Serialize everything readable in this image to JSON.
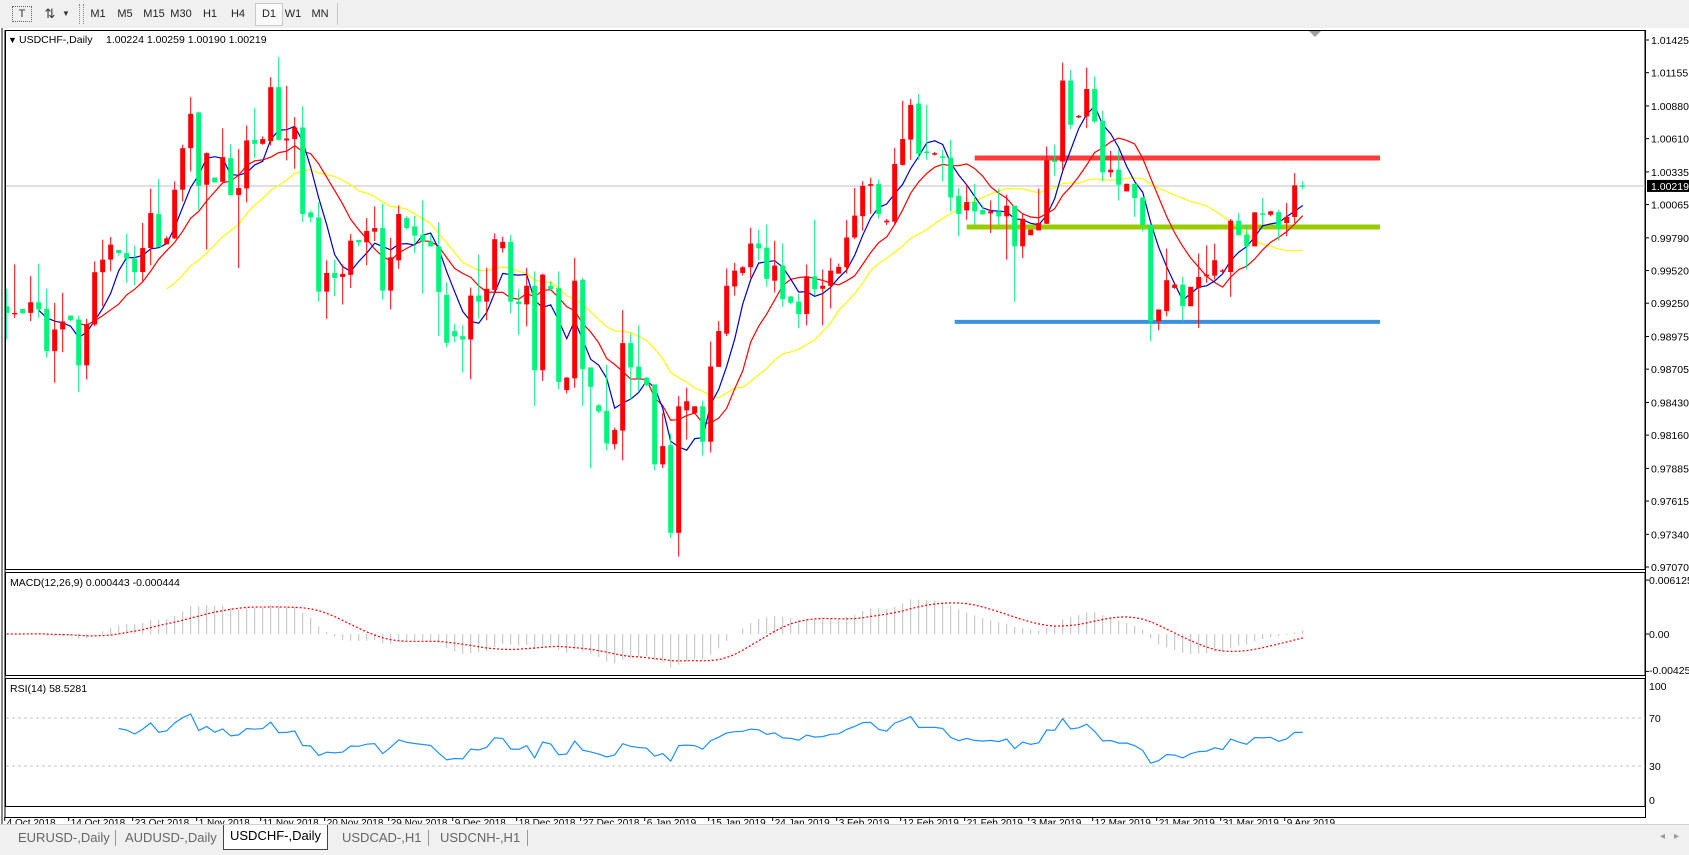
{
  "toolbar": {
    "text_tool_icon": "text-label-icon",
    "objects_icon": "arrows-objects-icon",
    "timeframes": [
      "M1",
      "M5",
      "M15",
      "M30",
      "H1",
      "H4",
      "D1",
      "W1",
      "MN"
    ],
    "active_timeframe": "D1"
  },
  "chart": {
    "symbol_title": "USDCHF-,Daily",
    "ohlc_readout": "1.00224 1.00259 1.00190 1.00219",
    "current_price": "1.00219",
    "current_price_value": 1.00219,
    "price_axis_labels": [
      "1.01425",
      "1.01155",
      "1.00880",
      "1.00610",
      "1.00335",
      "1.00065",
      "0.99790",
      "0.99520",
      "0.99250",
      "0.98975",
      "0.98705",
      "0.98430",
      "0.98160",
      "0.97885",
      "0.97615",
      "0.97340",
      "0.97070"
    ],
    "price_range": [
      0.9707,
      1.01425
    ],
    "date_labels": [
      "4 Oct 2018",
      "14 Oct 2018",
      "23 Oct 2018",
      "1 Nov 2018",
      "11 Nov 2018",
      "20 Nov 2018",
      "29 Nov 2018",
      "9 Dec 2018",
      "18 Dec 2018",
      "27 Dec 2018",
      "6 Jan 2019",
      "15 Jan 2019",
      "24 Jan 2019",
      "3 Feb 2019",
      "12 Feb 2019",
      "21 Feb 2019",
      "3 Mar 2019",
      "12 Mar 2019",
      "21 Mar 2019",
      "31 Mar 2019",
      "9 Apr 2019"
    ],
    "colors": {
      "bull_candle": "#ff0000",
      "bear_candle": "#00f57a",
      "ma_fast": "#0000c8",
      "ma_mid": "#ff0000",
      "ma_slow": "#ffff00",
      "current_price_line": "#c0c0c0"
    },
    "horizontal_lines": [
      {
        "price": 1.0045,
        "color": "#ff3c3c"
      },
      {
        "price": 0.9988,
        "color": "#99cc00"
      },
      {
        "price": 0.99096,
        "color": "#3c90e0"
      }
    ],
    "candles_ohlc": [
      [
        0.99225,
        0.99368,
        0.9895,
        0.9917
      ],
      [
        0.9917,
        0.9957,
        0.99129,
        0.9917
      ],
      [
        0.99203,
        0.99203,
        0.99165,
        0.99165
      ],
      [
        0.9917,
        0.99473,
        0.99101,
        0.99258
      ],
      [
        0.99258,
        0.99577,
        0.99129,
        0.99198
      ],
      [
        0.99203,
        0.99368,
        0.98799,
        0.98854
      ],
      [
        0.98854,
        0.99253,
        0.98593,
        0.99033
      ],
      [
        0.99033,
        0.99335,
        0.98845,
        0.99099
      ],
      [
        0.99148,
        0.99148,
        0.99101,
        0.9911
      ],
      [
        0.99115,
        0.99148,
        0.98516,
        0.98736
      ],
      [
        0.98736,
        0.99121,
        0.9862,
        0.99074
      ],
      [
        0.99074,
        0.99596,
        0.9906,
        0.99506
      ],
      [
        0.99506,
        0.99775,
        0.99225,
        0.9961
      ],
      [
        0.9961,
        0.99797,
        0.99514,
        0.99734
      ],
      [
        0.9969,
        0.9969,
        0.99643,
        0.99665
      ],
      [
        0.99665,
        0.99825,
        0.99418,
        0.99618
      ],
      [
        0.99618,
        0.99726,
        0.99398,
        0.99508
      ],
      [
        0.99508,
        0.99913,
        0.99431,
        0.99706
      ],
      [
        0.99706,
        1.00196,
        0.99563,
        0.99995
      ],
      [
        0.99987,
        1.00278,
        0.99715,
        0.99715
      ],
      [
        0.99737,
        0.99803,
        0.99737,
        0.99786
      ],
      [
        0.99786,
        1.00256,
        0.9978,
        1.00188
      ],
      [
        1.00188,
        1.00559,
        1.00091,
        1.00531
      ],
      [
        1.00531,
        1.00952,
        1.00339,
        1.00815
      ],
      [
        1.00826,
        1.00834,
        1.00023,
        1.00221
      ],
      [
        1.00229,
        1.00496,
        0.99693,
        1.0049
      ],
      [
        1.00288,
        1.00288,
        1.00248,
        1.00248
      ],
      [
        1.00253,
        1.00696,
        1.00254,
        1.00457
      ],
      [
        1.00449,
        1.00564,
        1.00143,
        1.00143
      ],
      [
        1.00143,
        1.00523,
        0.99541,
        1.00201
      ],
      [
        1.00198,
        1.00718,
        1.00083,
        1.00595
      ],
      [
        1.006,
        1.00861,
        1.00449,
        1.00567
      ],
      [
        1.00567,
        1.00628,
        1.00559,
        1.00606
      ],
      [
        1.00589,
        1.01117,
        1.00551,
        1.01035
      ],
      [
        1.01035,
        1.01282,
        1.00595,
        1.006
      ],
      [
        1.00595,
        1.01046,
        1.0043,
        1.00611
      ],
      [
        1.00606,
        1.00787,
        1.00361,
        1.00702
      ],
      [
        1.00702,
        1.0088,
        0.99918,
        0.99987
      ],
      [
        1.0,
        1.00017,
        0.99918,
        0.99959
      ],
      [
        0.99959,
        1.00083,
        0.99261,
        0.99346
      ],
      [
        0.99346,
        0.99604,
        0.99121,
        0.995
      ],
      [
        0.995,
        0.9961,
        0.99308,
        0.99459
      ],
      [
        0.99467,
        0.99569,
        0.99239,
        0.99492
      ],
      [
        0.99484,
        0.99822,
        0.99376,
        0.99767
      ],
      [
        0.99772,
        0.99775,
        0.9972,
        0.99753
      ],
      [
        0.99753,
        0.99954,
        0.99563,
        0.99847
      ],
      [
        0.99841,
        1.0005,
        0.99764,
        0.99871
      ],
      [
        0.99871,
        1.00072,
        0.9928,
        0.99354
      ],
      [
        0.99354,
        0.99789,
        0.99198,
        0.99629
      ],
      [
        0.99604,
        1.00058,
        0.99533,
        0.99987
      ],
      [
        0.99954,
        0.99968,
        0.99858,
        0.99871
      ],
      [
        0.99885,
        0.99973,
        0.99665,
        0.99808
      ],
      [
        0.99816,
        1.00099,
        0.99327,
        0.99761
      ],
      [
        0.99761,
        0.99816,
        0.99715,
        0.9972
      ],
      [
        0.9972,
        0.99918,
        0.98978,
        0.99343
      ],
      [
        0.99319,
        0.99425,
        0.98886,
        0.98922
      ],
      [
        0.9902,
        0.99081,
        0.98928,
        0.98975
      ],
      [
        0.98978,
        0.99067,
        0.98677,
        0.9895
      ],
      [
        0.9895,
        0.9938,
        0.98621,
        0.99313
      ],
      [
        0.99313,
        0.99653,
        0.99123,
        0.99263
      ],
      [
        0.99263,
        0.99542,
        0.99109,
        0.99369
      ],
      [
        0.9936,
        0.99826,
        0.99338,
        0.99779
      ],
      [
        0.99704,
        0.99799,
        0.99667,
        0.99757
      ],
      [
        0.99757,
        0.99815,
        0.99165,
        0.99263
      ],
      [
        0.99263,
        0.99366,
        0.98989,
        0.99243
      ],
      [
        0.9924,
        0.99542,
        0.99059,
        0.99394
      ],
      [
        0.99394,
        0.99514,
        0.98398,
        0.98696
      ],
      [
        0.98696,
        0.99494,
        0.98607,
        0.99486
      ],
      [
        0.99394,
        0.9943,
        0.9936,
        0.99366
      ],
      [
        0.99374,
        0.99514,
        0.98537,
        0.98599
      ],
      [
        0.98532,
        0.98641,
        0.98504,
        0.98635
      ],
      [
        0.98629,
        0.99625,
        0.98551,
        0.99436
      ],
      [
        0.99444,
        0.99458,
        0.98398,
        0.98705
      ],
      [
        0.98719,
        0.98719,
        0.97887,
        0.98557
      ],
      [
        0.98406,
        0.98417,
        0.98342,
        0.98356
      ],
      [
        0.98361,
        0.98741,
        0.98035,
        0.98091
      ],
      [
        0.98085,
        0.98222,
        0.98041,
        0.98203
      ],
      [
        0.98197,
        0.99193,
        0.97951,
        0.9892
      ],
      [
        0.9892,
        0.98998,
        0.98454,
        0.98719
      ],
      [
        0.98727,
        0.99067,
        0.98523,
        0.98629
      ],
      [
        0.98635,
        0.98641,
        0.9856,
        0.98574
      ],
      [
        0.98579,
        0.98579,
        0.97868,
        0.97918
      ],
      [
        0.97918,
        0.98342,
        0.97887,
        0.98069
      ],
      [
        0.98077,
        0.98175,
        0.9731,
        0.97352
      ],
      [
        0.97352,
        0.98482,
        0.97156,
        0.98398
      ],
      [
        0.98364,
        0.98551,
        0.98124,
        0.9844
      ],
      [
        0.98342,
        0.98398,
        0.98342,
        0.98398
      ],
      [
        0.98398,
        0.98445,
        0.97993,
        0.98105
      ],
      [
        0.98105,
        0.98934,
        0.98016,
        0.98727
      ],
      [
        0.98724,
        0.99101,
        0.98724,
        0.9902
      ],
      [
        0.98998,
        0.99536,
        0.98978,
        0.99394
      ],
      [
        0.99388,
        0.99584,
        0.99313,
        0.99519
      ],
      [
        0.995,
        0.99556,
        0.9948,
        0.99547
      ],
      [
        0.99547,
        0.99874,
        0.99458,
        0.99743
      ],
      [
        0.99743,
        0.99857,
        0.99606,
        0.99704
      ],
      [
        0.99709,
        0.99899,
        0.99388,
        0.9945
      ],
      [
        0.99436,
        0.99765,
        0.99338,
        0.99561
      ],
      [
        0.99561,
        0.99743,
        0.99221,
        0.99282
      ],
      [
        0.99305,
        0.9931,
        0.9924,
        0.99254
      ],
      [
        0.99263,
        0.99327,
        0.99045,
        0.9916
      ],
      [
        0.9916,
        0.9957,
        0.99067,
        0.99472
      ],
      [
        0.99472,
        0.99938,
        0.99313,
        0.99366
      ],
      [
        0.99369,
        0.99528,
        0.99067,
        0.99394
      ],
      [
        0.99394,
        0.99625,
        0.99207,
        0.99519
      ],
      [
        0.99494,
        0.99578,
        0.99494,
        0.9955
      ],
      [
        0.99547,
        0.99938,
        0.99494,
        0.99793
      ],
      [
        0.99793,
        1.00203,
        0.99779,
        0.99974
      ],
      [
        0.99969,
        1.00259,
        0.99849,
        1.0022
      ],
      [
        1.0022,
        1.00287,
        0.99988,
        1.00234
      ],
      [
        1.00234,
        1.00273,
        0.99952,
        0.99988
      ],
      [
        0.99918,
        0.99946,
        0.99896,
        0.99932
      ],
      [
        0.99924,
        1.00532,
        0.99904,
        1.00401
      ],
      [
        1.00393,
        1.00923,
        1.00387,
        1.00607
      ],
      [
        1.00602,
        1.00937,
        1.00435,
        1.00889
      ],
      [
        1.009,
        1.00979,
        1.00435,
        1.00485
      ],
      [
        1.00504,
        1.00887,
        1.00435,
        1.0049
      ],
      [
        1.0049,
        1.005,
        1.0047,
        1.0049
      ],
      [
        1.00463,
        1.00518,
        1.00256,
        1.00454
      ],
      [
        1.00454,
        1.006,
        1.00009,
        1.00124
      ],
      [
        1.00138,
        1.00201,
        0.99803,
        0.99987
      ],
      [
        1.00017,
        1.00229,
        0.9994,
        1.00086
      ],
      [
        1.00086,
        1.00237,
        0.99899,
        1.00009
      ],
      [
        1.0002,
        1.00058,
        0.99981,
        0.99984
      ],
      [
        0.99992,
        1.00099,
        0.9983,
        1.00009
      ],
      [
        1.00009,
        1.00196,
        0.99899,
        0.99968
      ],
      [
        0.99968,
        1.00146,
        0.9961,
        1.00056
      ],
      [
        1.00056,
        1.00056,
        0.99258,
        0.9972
      ],
      [
        0.9972,
        0.99995,
        0.99624,
        0.99948
      ],
      [
        0.99811,
        0.99858,
        0.99811,
        0.99858
      ],
      [
        0.99852,
        1.00196,
        0.99852,
        0.99913
      ],
      [
        0.99907,
        1.00545,
        0.99904,
        1.0043
      ],
      [
        1.0043,
        1.00559,
        1.00303,
        1.00421
      ],
      [
        1.00421,
        1.01238,
        1.00347,
        1.0109
      ],
      [
        1.0109,
        1.01178,
        1.00688,
        1.00724
      ],
      [
        1.00787,
        1.00806,
        1.00779,
        1.00798
      ],
      [
        1.00793,
        1.01197,
        1.00696,
        1.01021
      ],
      [
        1.01021,
        1.01123,
        1.00738,
        1.00751
      ],
      [
        1.00757,
        1.00842,
        1.00256,
        1.00331
      ],
      [
        1.00331,
        1.00509,
        1.00292,
        1.00353
      ],
      [
        1.00353,
        1.00518,
        1.00097,
        1.00229
      ],
      [
        1.00174,
        1.00237,
        1.00174,
        1.00237
      ],
      [
        1.00237,
        1.00237,
        0.99962,
        1.00119
      ],
      [
        1.00124,
        1.00124,
        0.99844,
        0.99899
      ],
      [
        0.99899,
        0.99899,
        0.98936,
        0.99101
      ],
      [
        0.99101,
        0.99198,
        0.99027,
        0.99198
      ],
      [
        0.99184,
        0.99701,
        0.99143,
        0.9944
      ],
      [
        0.99376,
        0.99404,
        0.99368,
        0.99404
      ],
      [
        0.99404,
        0.99467,
        0.99101,
        0.99225
      ],
      [
        0.99225,
        0.99385,
        0.99225,
        0.99385
      ],
      [
        0.99376,
        0.9966,
        0.99046,
        0.99467
      ],
      [
        0.99472,
        0.99728,
        0.99418,
        0.99486
      ],
      [
        0.99478,
        0.99742,
        0.99445,
        0.99605
      ],
      [
        0.99514,
        0.99533,
        0.995,
        0.99522
      ],
      [
        0.99508,
        0.99946,
        0.99302,
        0.99932
      ],
      [
        0.99932,
        0.99995,
        0.99811,
        0.99811
      ],
      [
        0.99816,
        0.99899,
        0.99528,
        0.9972
      ],
      [
        0.9972,
        1.00001,
        0.9972,
        1.00001
      ],
      [
        0.99992,
        1.00119,
        0.99899,
        0.99984
      ],
      [
        0.99981,
        1.00014,
        0.99968,
        1.00009
      ],
      [
        1.00003,
        1.00023,
        0.99767,
        0.99871
      ],
      [
        0.99913,
        1.00078,
        0.99803,
        0.99962
      ],
      [
        0.99962,
        1.00325,
        0.99913,
        1.00224
      ],
      [
        1.00224,
        1.00259,
        1.0019,
        1.00219
      ]
    ]
  },
  "macd": {
    "title": "MACD(12,26,9) 0.000443 -0.000444",
    "axis_labels": [
      {
        "text": "0.006125",
        "value": 0.006125
      },
      {
        "text": "0.00",
        "value": 0
      },
      {
        "text": "-0.00425",
        "value": -0.00425
      }
    ],
    "histogram_color": "#c0c0c0",
    "signal_color": "#ff0000"
  },
  "rsi": {
    "title": "RSI(14) 58.5281",
    "axis_labels": [
      {
        "text": "100",
        "value": 100
      },
      {
        "text": "70",
        "value": 70
      },
      {
        "text": "30",
        "value": 30
      },
      {
        "text": "0",
        "value": 0
      }
    ],
    "levels": [
      70,
      30
    ],
    "line_color": "#1e90ff"
  },
  "tabs": [
    {
      "label": "EURUSD-,Daily",
      "active": false
    },
    {
      "label": "AUDUSD-,Daily",
      "active": false
    },
    {
      "label": "USDCHF-,Daily",
      "active": true
    },
    {
      "label": "USDCAD-,H1",
      "active": false
    },
    {
      "label": "USDCNH-,H1",
      "active": false
    }
  ],
  "scroll": {
    "left_icon": "scroll-left-icon",
    "right_icon": "scroll-right-icon",
    "left": "◂",
    "right": "▸"
  }
}
